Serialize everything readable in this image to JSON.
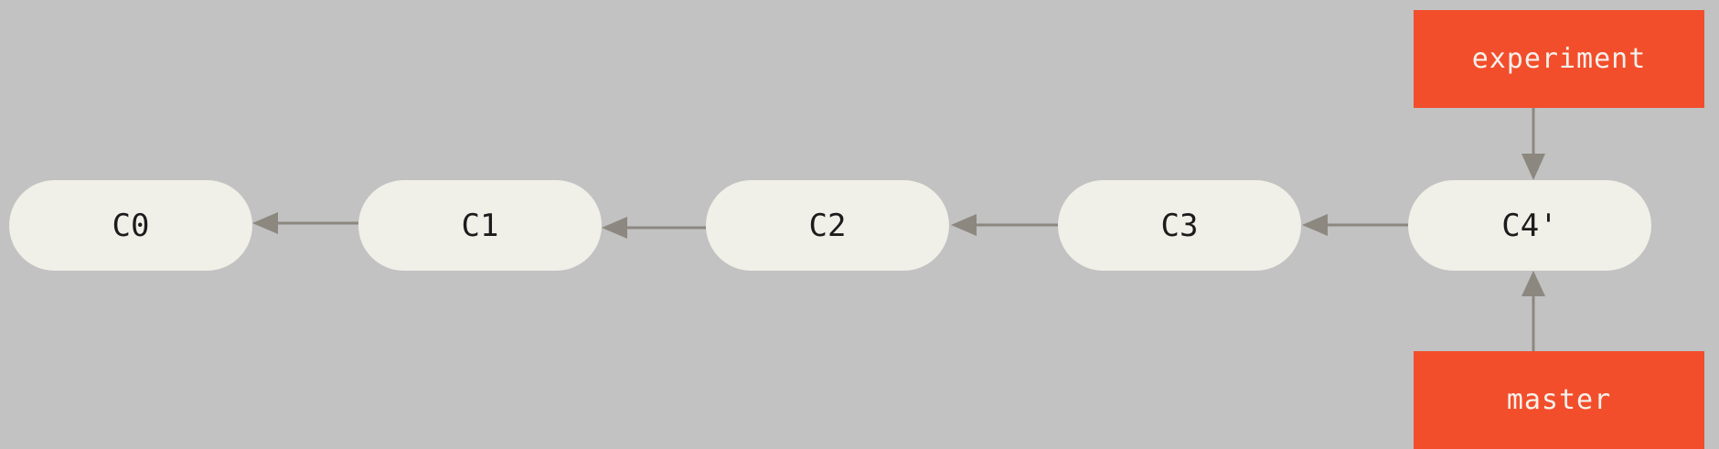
{
  "diagram": {
    "background": "#c2c2c2",
    "commit_fill": "#f0efe8",
    "branch_fill": "#f24e2b",
    "arrow_color": "#8c8880",
    "commits": [
      "C0",
      "C1",
      "C2",
      "C3",
      "C4'"
    ],
    "branches": {
      "experiment": "experiment",
      "master": "master"
    },
    "edges": [
      {
        "from": "C1",
        "to": "C0"
      },
      {
        "from": "C2",
        "to": "C1"
      },
      {
        "from": "C3",
        "to": "C2"
      },
      {
        "from": "C4'",
        "to": "C3"
      },
      {
        "from": "experiment",
        "to": "C4'"
      },
      {
        "from": "master",
        "to": "C4'"
      }
    ]
  }
}
